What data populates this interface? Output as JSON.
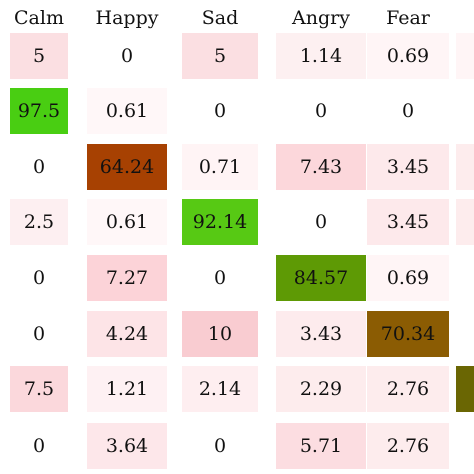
{
  "chart_data": {
    "type": "heatmap",
    "columns": [
      "Calm",
      "Happy",
      "Sad",
      "Angry",
      "Fear"
    ],
    "rows": [
      [
        5,
        0,
        5,
        1.14,
        0.69
      ],
      [
        97.5,
        0.61,
        0,
        0,
        0
      ],
      [
        0,
        64.24,
        0.71,
        7.43,
        3.45
      ],
      [
        2.5,
        0.61,
        92.14,
        0,
        3.45
      ],
      [
        0,
        7.27,
        0,
        84.57,
        0.69
      ],
      [
        0,
        4.24,
        10,
        3.43,
        70.34
      ],
      [
        7.5,
        1.21,
        2.14,
        2.29,
        2.76
      ],
      [
        0,
        3.64,
        0,
        5.71,
        2.76
      ]
    ],
    "cell_colors": [
      [
        "#fbdfe2",
        "#ffffff",
        "#fbdfe2",
        "#fdf0f1",
        "#fff5f6"
      ],
      [
        "#49ce12",
        "#fff7f8",
        "#ffffff",
        "#ffffff",
        "#ffffff"
      ],
      [
        "#ffffff",
        "#a74102",
        "#fff4f5",
        "#fcd7db",
        "#fde9eb"
      ],
      [
        "#fdeff1",
        "#fff7f8",
        "#57c914",
        "#ffffff",
        "#fde9eb"
      ],
      [
        "#ffffff",
        "#fcd3d8",
        "#ffffff",
        "#5e9a05",
        "#fff5f6"
      ],
      [
        "#ffffff",
        "#fde4e7",
        "#f9ccd1",
        "#fdebed",
        "#8b5c03"
      ],
      [
        "#fbd8dc",
        "#fef1f3",
        "#feeef0",
        "#fdeced",
        "#fdeced"
      ],
      [
        "#ffffff",
        "#fde7ea",
        "#ffffff",
        "#fcdde1",
        "#fdeced"
      ]
    ],
    "right_edge_colors": [
      "#fff5f6",
      "#ffffff",
      "#fdeced",
      "#fdeced",
      "#ffffff",
      "#ffffff",
      "#6a6603",
      "#ffffff"
    ]
  }
}
